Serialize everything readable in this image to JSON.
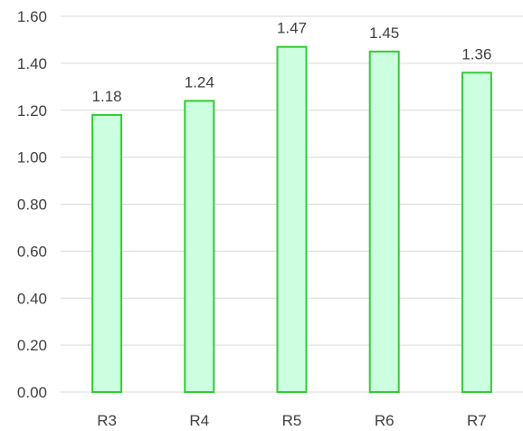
{
  "chart_data": {
    "type": "bar",
    "categories": [
      "R3",
      "R4",
      "R5",
      "R6",
      "R7"
    ],
    "values": [
      1.18,
      1.24,
      1.47,
      1.45,
      1.36
    ],
    "data_labels": [
      "1.18",
      "1.24",
      "1.47",
      "1.45",
      "1.36"
    ],
    "y_ticks": [
      "0.00",
      "0.20",
      "0.40",
      "0.60",
      "0.80",
      "1.00",
      "1.20",
      "1.40",
      "1.60"
    ],
    "ylim": [
      0,
      1.6
    ],
    "grid": true,
    "legend": "none",
    "colors": {
      "bar_fill": "#ccffe0",
      "bar_stroke": "#33cc33"
    }
  }
}
